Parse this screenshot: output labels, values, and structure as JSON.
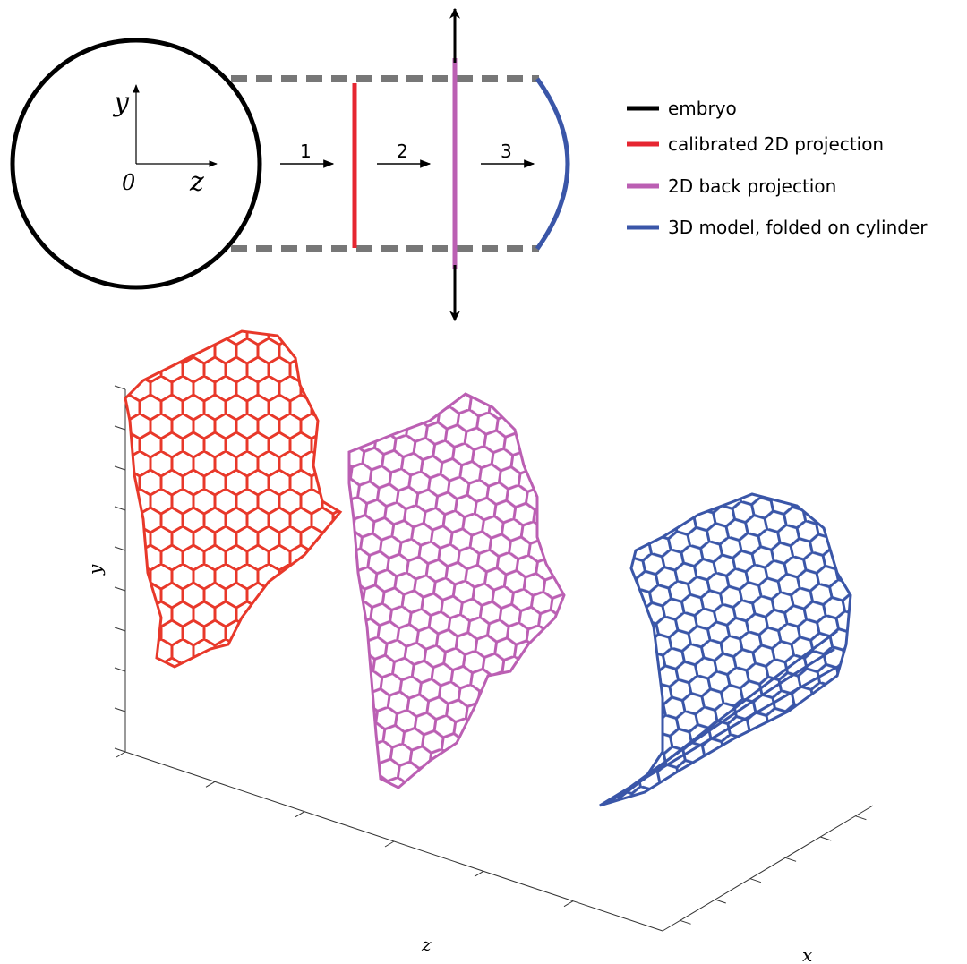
{
  "schematic": {
    "axis_labels": {
      "y": "y",
      "origin": "0",
      "z": "z"
    },
    "steps": [
      "1",
      "2",
      "3"
    ]
  },
  "legend": [
    "embryo",
    "calibrated 2D projection",
    "2D back projection",
    "3D model, folded on cylinder"
  ],
  "plot": {
    "y_label": "y",
    "z_label": "z",
    "x_label": "x"
  }
}
